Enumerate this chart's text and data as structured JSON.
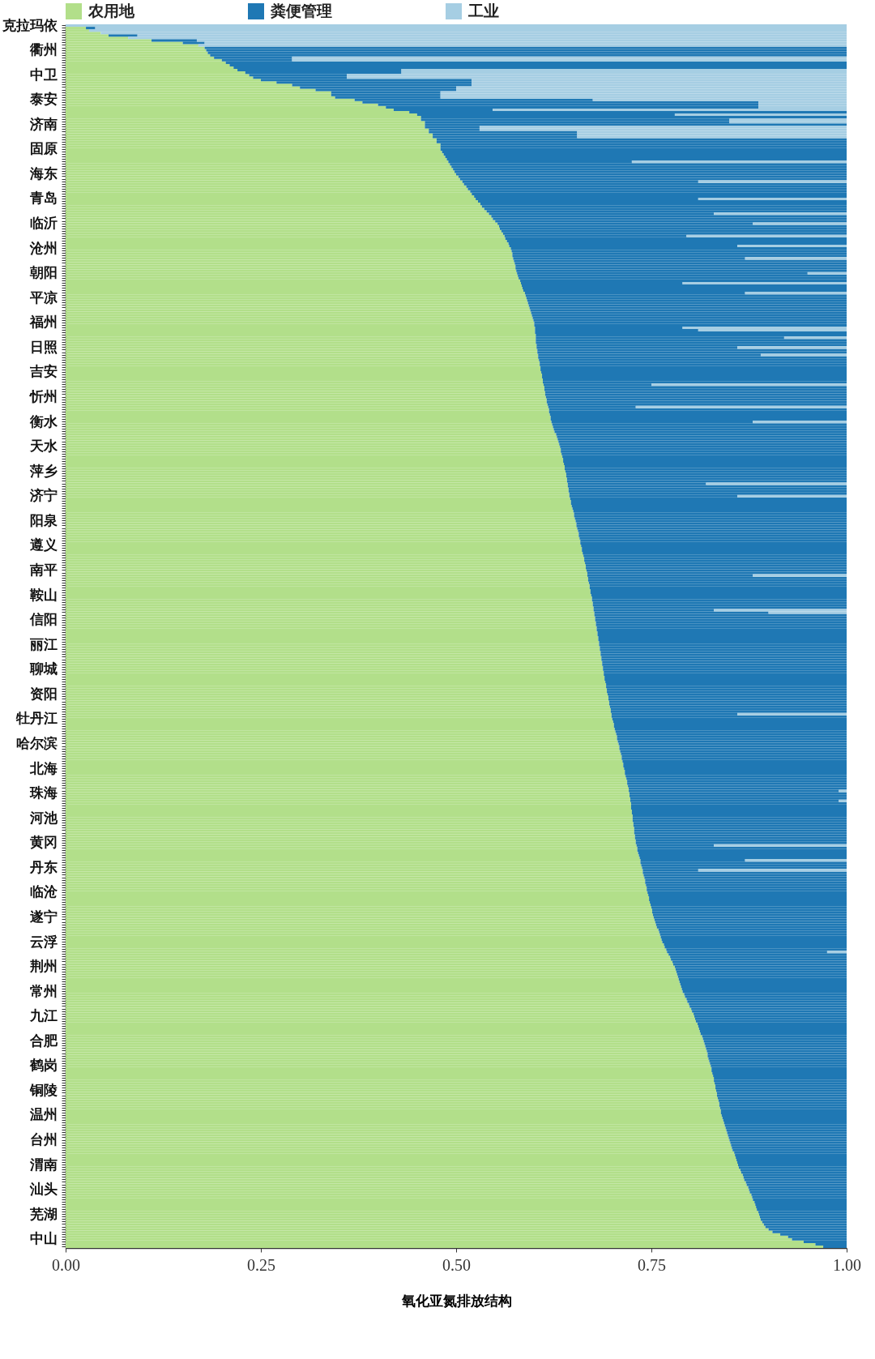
{
  "chart_data": {
    "type": "bar",
    "orientation": "horizontal",
    "stacked": true,
    "xlabel": "氧化亚氮排放结构",
    "legend": "top",
    "grid": false,
    "xlim": [
      0,
      1
    ],
    "xticks": [
      {
        "value": 0,
        "label": "0.00"
      },
      {
        "value": 0.25,
        "label": "0.25"
      },
      {
        "value": 0.5,
        "label": "0.50"
      },
      {
        "value": 0.75,
        "label": "0.75"
      },
      {
        "value": 1,
        "label": "1.00"
      }
    ],
    "categories": [
      "克拉玛依",
      null,
      null,
      null,
      null,
      null,
      null,
      null,
      null,
      null,
      "衢州",
      null,
      null,
      null,
      null,
      null,
      null,
      null,
      null,
      null,
      "中卫",
      null,
      null,
      null,
      null,
      null,
      null,
      null,
      null,
      null,
      "泰安",
      null,
      null,
      null,
      null,
      null,
      null,
      null,
      null,
      null,
      "济南",
      null,
      null,
      null,
      null,
      null,
      null,
      null,
      null,
      null,
      "固原",
      null,
      null,
      null,
      null,
      null,
      null,
      null,
      null,
      null,
      "海东",
      null,
      null,
      null,
      null,
      null,
      null,
      null,
      null,
      null,
      "青岛",
      null,
      null,
      null,
      null,
      null,
      null,
      null,
      null,
      null,
      "临沂",
      null,
      null,
      null,
      null,
      null,
      null,
      null,
      null,
      null,
      "沧州",
      null,
      null,
      null,
      null,
      null,
      null,
      null,
      null,
      null,
      "朝阳",
      null,
      null,
      null,
      null,
      null,
      null,
      null,
      null,
      null,
      "平凉",
      null,
      null,
      null,
      null,
      null,
      null,
      null,
      null,
      null,
      "福州",
      null,
      null,
      null,
      null,
      null,
      null,
      null,
      null,
      null,
      "日照",
      null,
      null,
      null,
      null,
      null,
      null,
      null,
      null,
      null,
      "吉安",
      null,
      null,
      null,
      null,
      null,
      null,
      null,
      null,
      null,
      "忻州",
      null,
      null,
      null,
      null,
      null,
      null,
      null,
      null,
      null,
      "衡水",
      null,
      null,
      null,
      null,
      null,
      null,
      null,
      null,
      null,
      "天水",
      null,
      null,
      null,
      null,
      null,
      null,
      null,
      null,
      null,
      "萍乡",
      null,
      null,
      null,
      null,
      null,
      null,
      null,
      null,
      null,
      "济宁",
      null,
      null,
      null,
      null,
      null,
      null,
      null,
      null,
      null,
      "阳泉",
      null,
      null,
      null,
      null,
      null,
      null,
      null,
      null,
      null,
      "遵义",
      null,
      null,
      null,
      null,
      null,
      null,
      null,
      null,
      null,
      "南平",
      null,
      null,
      null,
      null,
      null,
      null,
      null,
      null,
      null,
      "鞍山",
      null,
      null,
      null,
      null,
      null,
      null,
      null,
      null,
      null,
      "信阳",
      null,
      null,
      null,
      null,
      null,
      null,
      null,
      null,
      null,
      "丽江",
      null,
      null,
      null,
      null,
      null,
      null,
      null,
      null,
      null,
      "聊城",
      null,
      null,
      null,
      null,
      null,
      null,
      null,
      null,
      null,
      "资阳",
      null,
      null,
      null,
      null,
      null,
      null,
      null,
      null,
      null,
      "牡丹江",
      null,
      null,
      null,
      null,
      null,
      null,
      null,
      null,
      null,
      "哈尔滨",
      null,
      null,
      null,
      null,
      null,
      null,
      null,
      null,
      null,
      "北海",
      null,
      null,
      null,
      null,
      null,
      null,
      null,
      null,
      null,
      "珠海",
      null,
      null,
      null,
      null,
      null,
      null,
      null,
      null,
      null,
      "河池",
      null,
      null,
      null,
      null,
      null,
      null,
      null,
      null,
      null,
      "黄冈",
      null,
      null,
      null,
      null,
      null,
      null,
      null,
      null,
      null,
      "丹东",
      null,
      null,
      null,
      null,
      null,
      null,
      null,
      null,
      null,
      "临沧",
      null,
      null,
      null,
      null,
      null,
      null,
      null,
      null,
      null,
      "遂宁",
      null,
      null,
      null,
      null,
      null,
      null,
      null,
      null,
      null,
      "云浮",
      null,
      null,
      null,
      null,
      null,
      null,
      null,
      null,
      null,
      "荆州",
      null,
      null,
      null,
      null,
      null,
      null,
      null,
      null,
      null,
      "常州",
      null,
      null,
      null,
      null,
      null,
      null,
      null,
      null,
      null,
      "九江",
      null,
      null,
      null,
      null,
      null,
      null,
      null,
      null,
      null,
      "合肥",
      null,
      null,
      null,
      null,
      null,
      null,
      null,
      null,
      null,
      "鹤岗",
      null,
      null,
      null,
      null,
      null,
      null,
      null,
      null,
      null,
      "铜陵",
      null,
      null,
      null,
      null,
      null,
      null,
      null,
      null,
      null,
      "温州",
      null,
      null,
      null,
      null,
      null,
      null,
      null,
      null,
      null,
      "台州",
      null,
      null,
      null,
      null,
      null,
      null,
      null,
      null,
      null,
      "渭南",
      null,
      null,
      null,
      null,
      null,
      null,
      null,
      null,
      null,
      "汕头",
      null,
      null,
      null,
      null,
      null,
      null,
      null,
      null,
      null,
      "芜湖",
      null,
      null,
      null,
      null,
      null,
      null,
      null,
      null,
      null,
      "中山",
      null,
      null,
      null
    ],
    "series": [
      {
        "name": "农用地",
        "color": "#b2df8a",
        "values": [
          0,
          0.026,
          0.03,
          0.045,
          0.055,
          0.08,
          0.11,
          0.15,
          0.17,
          0.178,
          0.18,
          0.182,
          0.185,
          0.19,
          0.2,
          0.205,
          0.21,
          0.215,
          0.22,
          0.23,
          0.235,
          0.24,
          0.25,
          0.27,
          0.29,
          0.3,
          0.32,
          0.34,
          0.34,
          0.345,
          0.37,
          0.38,
          0.4,
          0.41,
          0.42,
          0.44,
          0.45,
          0.455,
          0.455,
          0.46,
          0.46,
          0.46,
          0.465,
          0.465,
          0.47,
          0.47,
          0.475,
          0.475,
          0.48,
          0.48,
          0.48,
          0.482,
          0.484,
          0.486,
          0.488,
          0.49,
          0.492,
          0.494,
          0.496,
          0.498,
          0.5,
          0.503,
          0.505,
          0.508,
          0.51,
          0.513,
          0.515,
          0.518,
          0.52,
          0.523,
          0.525,
          0.528,
          0.531,
          0.533,
          0.536,
          0.539,
          0.542,
          0.545,
          0.547,
          0.55,
          0.553,
          0.555,
          0.556,
          0.558,
          0.56,
          0.562,
          0.563,
          0.565,
          0.567,
          0.568,
          0.57,
          0.571,
          0.572,
          0.572,
          0.573,
          0.574,
          0.575,
          0.576,
          0.576,
          0.577,
          0.578,
          0.579,
          0.58,
          0.582,
          0.583,
          0.584,
          0.585,
          0.586,
          0.588,
          0.589,
          0.59,
          0.591,
          0.592,
          0.593,
          0.594,
          0.595,
          0.596,
          0.597,
          0.598,
          0.599,
          0.6,
          0.6,
          0.601,
          0.601,
          0.601,
          0.602,
          0.602,
          0.602,
          0.602,
          0.603,
          0.603,
          0.604,
          0.604,
          0.605,
          0.605,
          0.606,
          0.607,
          0.607,
          0.608,
          0.608,
          0.609,
          0.61,
          0.61,
          0.611,
          0.611,
          0.612,
          0.613,
          0.613,
          0.614,
          0.614,
          0.615,
          0.616,
          0.616,
          0.617,
          0.618,
          0.619,
          0.619,
          0.62,
          0.621,
          0.621,
          0.622,
          0.623,
          0.624,
          0.625,
          0.626,
          0.628,
          0.629,
          0.63,
          0.631,
          0.632,
          0.633,
          0.634,
          0.634,
          0.635,
          0.636,
          0.637,
          0.637,
          0.638,
          0.639,
          0.639,
          0.64,
          0.641,
          0.641,
          0.642,
          0.642,
          0.643,
          0.643,
          0.644,
          0.644,
          0.645,
          0.645,
          0.646,
          0.647,
          0.647,
          0.648,
          0.649,
          0.65,
          0.651,
          0.651,
          0.652,
          0.653,
          0.654,
          0.654,
          0.655,
          0.656,
          0.657,
          0.657,
          0.658,
          0.659,
          0.659,
          0.66,
          0.661,
          0.661,
          0.662,
          0.663,
          0.664,
          0.664,
          0.665,
          0.666,
          0.666,
          0.667,
          0.668,
          0.668,
          0.669,
          0.669,
          0.67,
          0.671,
          0.671,
          0.672,
          0.672,
          0.673,
          0.674,
          0.674,
          0.675,
          0.675,
          0.676,
          0.676,
          0.677,
          0.677,
          0.678,
          0.678,
          0.679,
          0.679,
          0.68,
          0.68,
          0.681,
          0.681,
          0.682,
          0.682,
          0.683,
          0.683,
          0.684,
          0.684,
          0.685,
          0.685,
          0.686,
          0.686,
          0.687,
          0.687,
          0.688,
          0.688,
          0.689,
          0.689,
          0.69,
          0.69,
          0.691,
          0.692,
          0.692,
          0.693,
          0.693,
          0.694,
          0.695,
          0.695,
          0.696,
          0.696,
          0.697,
          0.698,
          0.698,
          0.699,
          0.699,
          0.7,
          0.701,
          0.702,
          0.702,
          0.703,
          0.704,
          0.705,
          0.706,
          0.706,
          0.707,
          0.708,
          0.709,
          0.709,
          0.71,
          0.711,
          0.712,
          0.712,
          0.713,
          0.714,
          0.714,
          0.715,
          0.716,
          0.716,
          0.717,
          0.718,
          0.719,
          0.719,
          0.72,
          0.721,
          0.721,
          0.722,
          0.722,
          0.723,
          0.723,
          0.724,
          0.724,
          0.724,
          0.725,
          0.725,
          0.726,
          0.726,
          0.726,
          0.727,
          0.727,
          0.728,
          0.728,
          0.728,
          0.729,
          0.729,
          0.73,
          0.73,
          0.731,
          0.732,
          0.732,
          0.733,
          0.734,
          0.735,
          0.736,
          0.736,
          0.737,
          0.738,
          0.739,
          0.739,
          0.74,
          0.741,
          0.742,
          0.742,
          0.743,
          0.744,
          0.744,
          0.745,
          0.746,
          0.747,
          0.747,
          0.748,
          0.749,
          0.75,
          0.751,
          0.751,
          0.752,
          0.753,
          0.754,
          0.755,
          0.756,
          0.757,
          0.759,
          0.76,
          0.761,
          0.762,
          0.763,
          0.764,
          0.766,
          0.767,
          0.769,
          0.77,
          0.772,
          0.774,
          0.775,
          0.777,
          0.778,
          0.78,
          0.781,
          0.782,
          0.783,
          0.784,
          0.785,
          0.786,
          0.787,
          0.788,
          0.789,
          0.79,
          0.792,
          0.793,
          0.795,
          0.796,
          0.798,
          0.799,
          0.801,
          0.802,
          0.804,
          0.805,
          0.806,
          0.807,
          0.809,
          0.81,
          0.811,
          0.812,
          0.813,
          0.815,
          0.816,
          0.817,
          0.818,
          0.819,
          0.82,
          0.821,
          0.822,
          0.822,
          0.823,
          0.824,
          0.825,
          0.826,
          0.827,
          0.827,
          0.828,
          0.829,
          0.83,
          0.83,
          0.831,
          0.832,
          0.832,
          0.833,
          0.834,
          0.834,
          0.835,
          0.836,
          0.837,
          0.837,
          0.838,
          0.839,
          0.839,
          0.84,
          0.841,
          0.842,
          0.843,
          0.844,
          0.845,
          0.846,
          0.847,
          0.848,
          0.849,
          0.85,
          0.851,
          0.852,
          0.853,
          0.854,
          0.856,
          0.857,
          0.858,
          0.859,
          0.86,
          0.861,
          0.862,
          0.864,
          0.865,
          0.867,
          0.868,
          0.869,
          0.871,
          0.872,
          0.874,
          0.875,
          0.876,
          0.878,
          0.879,
          0.88,
          0.882,
          0.883,
          0.884,
          0.885,
          0.887,
          0.888,
          0.889,
          0.89,
          0.892,
          0.894,
          0.896,
          0.9,
          0.905,
          0.915,
          0.925,
          0.93,
          0.945,
          0.96,
          0.97
        ]
      },
      {
        "name": "粪便管理",
        "color": "#1f78b4",
        "values": [
          0,
          0.012,
          0,
          0,
          0.037,
          0,
          0.058,
          0.028,
          0,
          0.822,
          0.82,
          0.818,
          0.815,
          0.1,
          0.09,
          0.795,
          0.79,
          0.785,
          0.21,
          0.2,
          0.125,
          0.12,
          0.27,
          0.25,
          0.23,
          0.2,
          0.18,
          0.14,
          0.14,
          0.135,
          0.305,
          0.507,
          0.487,
          0.477,
          0.127,
          0.56,
          0.33,
          0.545,
          0.395,
          0.39,
          0.54,
          0.07,
          0.065,
          0.19,
          0.185,
          0.185,
          0.525,
          0.525,
          0.52,
          0.52,
          0.52,
          0.518,
          0.516,
          0.514,
          0.512,
          0.235,
          0.508,
          0.506,
          0.504,
          0.502,
          0.5,
          0.497,
          0.495,
          0.302,
          0.49,
          0.487,
          0.485,
          0.482,
          0.48,
          0.477,
          0.285,
          0.472,
          0.469,
          0.467,
          0.464,
          0.461,
          0.288,
          0.455,
          0.453,
          0.45,
          0.327,
          0.445,
          0.444,
          0.442,
          0.44,
          0.233,
          0.437,
          0.435,
          0.433,
          0.292,
          0.43,
          0.429,
          0.428,
          0.428,
          0.297,
          0.426,
          0.425,
          0.424,
          0.424,
          0.423,
          0.372,
          0.421,
          0.42,
          0.418,
          0.207,
          0.416,
          0.415,
          0.414,
          0.282,
          0.411,
          0.41,
          0.409,
          0.408,
          0.407,
          0.406,
          0.405,
          0.404,
          0.403,
          0.402,
          0.401,
          0.4,
          0.4,
          0.189,
          0.209,
          0.399,
          0.398,
          0.318,
          0.398,
          0.398,
          0.397,
          0.257,
          0.396,
          0.396,
          0.285,
          0.395,
          0.394,
          0.393,
          0.393,
          0.392,
          0.392,
          0.391,
          0.39,
          0.39,
          0.389,
          0.389,
          0.138,
          0.387,
          0.387,
          0.386,
          0.386,
          0.385,
          0.384,
          0.384,
          0.383,
          0.112,
          0.381,
          0.381,
          0.38,
          0.379,
          0.379,
          0.258,
          0.377,
          0.376,
          0.375,
          0.374,
          0.372,
          0.371,
          0.37,
          0.369,
          0.368,
          0.367,
          0.366,
          0.366,
          0.365,
          0.364,
          0.363,
          0.363,
          0.362,
          0.361,
          0.361,
          0.36,
          0.359,
          0.359,
          0.358,
          0.358,
          0.177,
          0.357,
          0.356,
          0.356,
          0.355,
          0.215,
          0.354,
          0.353,
          0.353,
          0.352,
          0.351,
          0.35,
          0.349,
          0.349,
          0.348,
          0.347,
          0.346,
          0.346,
          0.345,
          0.344,
          0.343,
          0.343,
          0.342,
          0.341,
          0.341,
          0.34,
          0.339,
          0.339,
          0.338,
          0.337,
          0.336,
          0.336,
          0.335,
          0.334,
          0.334,
          0.333,
          0.332,
          0.212,
          0.331,
          0.331,
          0.33,
          0.329,
          0.329,
          0.328,
          0.328,
          0.327,
          0.326,
          0.326,
          0.325,
          0.325,
          0.324,
          0.154,
          0.223,
          0.323,
          0.322,
          0.322,
          0.321,
          0.321,
          0.32,
          0.32,
          0.319,
          0.319,
          0.318,
          0.318,
          0.317,
          0.317,
          0.316,
          0.316,
          0.315,
          0.315,
          0.314,
          0.314,
          0.313,
          0.313,
          0.312,
          0.312,
          0.311,
          0.311,
          0.31,
          0.31,
          0.309,
          0.308,
          0.308,
          0.307,
          0.307,
          0.306,
          0.305,
          0.305,
          0.304,
          0.304,
          0.303,
          0.302,
          0.302,
          0.161,
          0.301,
          0.3,
          0.299,
          0.298,
          0.298,
          0.297,
          0.296,
          0.295,
          0.294,
          0.294,
          0.293,
          0.292,
          0.291,
          0.291,
          0.29,
          0.289,
          0.288,
          0.288,
          0.287,
          0.286,
          0.286,
          0.285,
          0.284,
          0.284,
          0.283,
          0.282,
          0.281,
          0.281,
          0.28,
          0.279,
          0.269,
          0.278,
          0.278,
          0.277,
          0.267,
          0.276,
          0.276,
          0.276,
          0.275,
          0.275,
          0.274,
          0.274,
          0.274,
          0.273,
          0.273,
          0.272,
          0.272,
          0.272,
          0.271,
          0.271,
          0.27,
          0.27,
          0.099,
          0.268,
          0.268,
          0.267,
          0.266,
          0.265,
          0.134,
          0.264,
          0.263,
          0.262,
          0.071,
          0.261,
          0.26,
          0.259,
          0.258,
          0.258,
          0.257,
          0.256,
          0.256,
          0.255,
          0.254,
          0.253,
          0.253,
          0.252,
          0.251,
          0.25,
          0.249,
          0.249,
          0.248,
          0.247,
          0.246,
          0.245,
          0.244,
          0.243,
          0.241,
          0.24,
          0.239,
          0.238,
          0.237,
          0.236,
          0.234,
          0.233,
          0.231,
          0.205,
          0.228,
          0.226,
          0.225,
          0.223,
          0.222,
          0.22,
          0.219,
          0.218,
          0.217,
          0.216,
          0.215,
          0.214,
          0.213,
          0.212,
          0.211,
          0.21,
          0.208,
          0.207,
          0.205,
          0.204,
          0.202,
          0.201,
          0.199,
          0.198,
          0.196,
          0.195,
          0.194,
          0.193,
          0.191,
          0.19,
          0.189,
          0.188,
          0.187,
          0.185,
          0.184,
          0.183,
          0.182,
          0.181,
          0.18,
          0.179,
          0.178,
          0.178,
          0.177,
          0.176,
          0.175,
          0.174,
          0.173,
          0.173,
          0.172,
          0.171,
          0.17,
          0.17,
          0.169,
          0.168,
          0.168,
          0.167,
          0.166,
          0.166,
          0.165,
          0.164,
          0.163,
          0.163,
          0.162,
          0.161,
          0.161,
          0.16,
          0.159,
          0.158,
          0.157,
          0.156,
          0.155,
          0.154,
          0.153,
          0.152,
          0.151,
          0.15,
          0.149,
          0.148,
          0.147,
          0.146,
          0.144,
          0.143,
          0.142,
          0.141,
          0.14,
          0.139,
          0.138,
          0.136,
          0.135,
          0.133,
          0.132,
          0.131,
          0.129,
          0.128,
          0.126,
          0.125,
          0.124,
          0.122,
          0.121,
          0.12,
          0.118,
          0.117,
          0.116,
          0.115,
          0.113,
          0.112,
          0.111,
          0.11,
          0.108,
          0.106,
          0.104,
          0.1,
          0.095,
          0.085,
          0.075,
          0.07,
          0.055,
          0.04,
          0.03
        ]
      },
      {
        "name": "工业",
        "color": "#a6cee3",
        "values": [
          1,
          0.962,
          0.97,
          0.955,
          0.908,
          0.92,
          0.832,
          0.822,
          0.83,
          0,
          0,
          0,
          0,
          0.71,
          0.71,
          0,
          0,
          0,
          0.57,
          0.57,
          0.64,
          0.64,
          0.48,
          0.48,
          0.48,
          0.5,
          0.5,
          0.52,
          0.52,
          0.52,
          0.325,
          0.113,
          0.113,
          0.113,
          0.453,
          0,
          0.22,
          0,
          0.15,
          0.15,
          0,
          0.47,
          0.47,
          0.345,
          0.345,
          0.345,
          0,
          0,
          0,
          0,
          0,
          0,
          0,
          0,
          0,
          0.275,
          0,
          0,
          0,
          0,
          0,
          0,
          0,
          0.19,
          0,
          0,
          0,
          0,
          0,
          0,
          0.19,
          0,
          0,
          0,
          0,
          0,
          0.17,
          0,
          0,
          0,
          0.12,
          0,
          0,
          0,
          0,
          0.205,
          0,
          0,
          0,
          0.14,
          0,
          0,
          0,
          0,
          0.13,
          0,
          0,
          0,
          0,
          0,
          0.05,
          0,
          0,
          0,
          0.21,
          0,
          0,
          0,
          0.13,
          0,
          0,
          0,
          0,
          0,
          0,
          0,
          0,
          0,
          0,
          0,
          0,
          0,
          0.21,
          0.19,
          0,
          0,
          0.08,
          0,
          0,
          0,
          0.14,
          0,
          0,
          0.11,
          0,
          0,
          0,
          0,
          0,
          0,
          0,
          0,
          0,
          0,
          0,
          0.25,
          0,
          0,
          0,
          0,
          0,
          0,
          0,
          0,
          0.27,
          0,
          0,
          0,
          0,
          0,
          0.12,
          0,
          0,
          0,
          0,
          0,
          0,
          0,
          0,
          0,
          0,
          0,
          0,
          0,
          0,
          0,
          0,
          0,
          0,
          0,
          0,
          0,
          0,
          0,
          0,
          0.18,
          0,
          0,
          0,
          0,
          0.14,
          0,
          0,
          0,
          0,
          0,
          0,
          0,
          0,
          0,
          0,
          0,
          0,
          0,
          0,
          0,
          0,
          0,
          0,
          0,
          0,
          0,
          0,
          0,
          0,
          0,
          0,
          0,
          0,
          0,
          0,
          0,
          0.12,
          0,
          0,
          0,
          0,
          0,
          0,
          0,
          0,
          0,
          0,
          0,
          0,
          0,
          0.17,
          0.1,
          0,
          0,
          0,
          0,
          0,
          0,
          0,
          0,
          0,
          0,
          0,
          0,
          0,
          0,
          0,
          0,
          0,
          0,
          0,
          0,
          0,
          0,
          0,
          0,
          0,
          0,
          0,
          0,
          0,
          0,
          0,
          0,
          0,
          0,
          0,
          0,
          0,
          0,
          0,
          0,
          0.14,
          0,
          0,
          0,
          0,
          0,
          0,
          0,
          0,
          0,
          0,
          0,
          0,
          0,
          0,
          0,
          0,
          0,
          0,
          0,
          0,
          0,
          0,
          0,
          0,
          0,
          0,
          0,
          0,
          0,
          0,
          0.01,
          0,
          0,
          0,
          0.01,
          0,
          0,
          0,
          0,
          0,
          0,
          0,
          0,
          0,
          0,
          0,
          0,
          0,
          0,
          0,
          0,
          0,
          0.17,
          0,
          0,
          0,
          0,
          0,
          0.13,
          0,
          0,
          0,
          0.19,
          0,
          0,
          0,
          0,
          0,
          0,
          0,
          0,
          0,
          0,
          0,
          0,
          0,
          0,
          0,
          0,
          0,
          0,
          0,
          0,
          0,
          0,
          0,
          0,
          0,
          0,
          0,
          0,
          0,
          0,
          0,
          0,
          0.025,
          0,
          0,
          0,
          0,
          0,
          0,
          0,
          0,
          0,
          0,
          0,
          0,
          0,
          0,
          0,
          0,
          0,
          0,
          0,
          0,
          0,
          0,
          0,
          0,
          0,
          0,
          0,
          0,
          0,
          0,
          0,
          0,
          0,
          0,
          0,
          0,
          0,
          0,
          0,
          0,
          0,
          0,
          0,
          0,
          0,
          0,
          0,
          0,
          0,
          0,
          0,
          0,
          0,
          0,
          0,
          0,
          0,
          0,
          0,
          0,
          0,
          0,
          0,
          0,
          0,
          0,
          0,
          0,
          0,
          0,
          0,
          0,
          0,
          0,
          0,
          0,
          0,
          0,
          0,
          0,
          0,
          0,
          0,
          0,
          0,
          0,
          0,
          0,
          0,
          0,
          0,
          0,
          0,
          0,
          0,
          0,
          0,
          0,
          0,
          0,
          0,
          0,
          0,
          0,
          0,
          0,
          0,
          0,
          0,
          0,
          0,
          0,
          0,
          0,
          0,
          0,
          0,
          0,
          0
        ]
      }
    ]
  }
}
